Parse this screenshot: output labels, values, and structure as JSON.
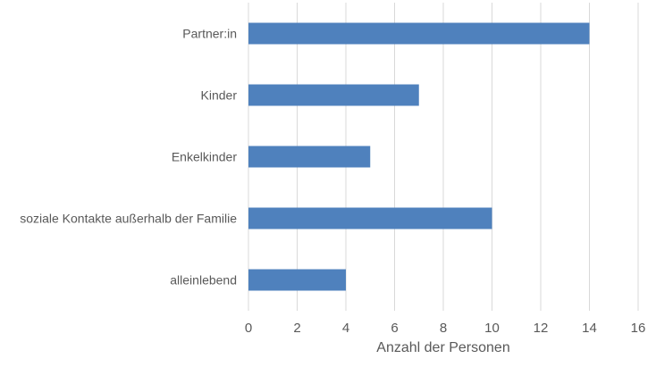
{
  "chart_data": {
    "type": "bar",
    "orientation": "horizontal",
    "categories": [
      "Partner:in",
      "Kinder",
      "Enkelkinder",
      "soziale Kontakte außerhalb der Familie",
      "alleinlebend"
    ],
    "values": [
      14,
      7,
      5,
      10,
      4
    ],
    "title": "",
    "xlabel": "Anzahl der Personen",
    "ylabel": "",
    "xlim": [
      0,
      16
    ],
    "xticks": [
      0,
      2,
      4,
      6,
      8,
      10,
      12,
      14,
      16
    ],
    "grid": true,
    "legend": "none",
    "bar_color": "#4f81bd",
    "grid_color": "#d9d9d9"
  }
}
